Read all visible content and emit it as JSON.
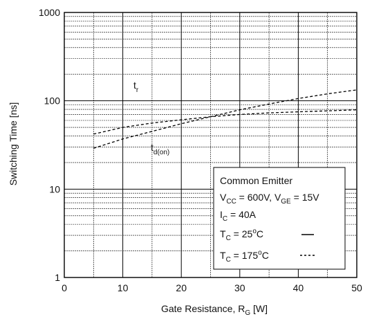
{
  "chart_data": {
    "type": "line",
    "xlabel": "Gate Resistance, R",
    "xlabel_sub": "G",
    "xlabel_unit": " [W]",
    "ylabel": "Switching Time [ns]",
    "xlim": [
      0,
      50
    ],
    "ylim": [
      1,
      1000
    ],
    "yscale": "log",
    "grid": true,
    "x_ticks": [
      0,
      10,
      20,
      30,
      40,
      50
    ],
    "x_tick_labels": [
      "0",
      "10",
      "20",
      "30",
      "40",
      "50"
    ],
    "y_ticks": [
      1,
      10,
      100,
      1000
    ],
    "y_tick_labels": [
      "1",
      "10",
      "100",
      "1000"
    ],
    "series": [
      {
        "name": "t_r",
        "label_main": "t",
        "label_sub": "r",
        "style": "dashed",
        "x": [
          5,
          10,
          15,
          20,
          25,
          30,
          35,
          40,
          45,
          50
        ],
        "y": [
          29,
          37,
          45,
          55,
          66,
          79,
          92,
          106,
          120,
          133
        ]
      },
      {
        "name": "t_d(on)",
        "label_main": "t",
        "label_sub": "d(on)",
        "style": "dashed",
        "x": [
          5,
          10,
          15,
          20,
          25,
          30,
          35,
          40,
          45,
          50
        ],
        "y": [
          42,
          50,
          56,
          61,
          66,
          70,
          73,
          75,
          77,
          79
        ]
      }
    ],
    "legend": {
      "placement": "bottom-right",
      "title": "Common Emitter",
      "line1": {
        "a": "V",
        "a_sub": "CC",
        "b": " = 600V, V",
        "b_sub": "GE",
        "c": " = 15V"
      },
      "line2": {
        "a": "I",
        "a_sub": "C",
        "b": " = 40A"
      },
      "line3": {
        "a": "T",
        "a_sub": "C",
        "b": " = 25",
        "sup": "o",
        "c": "C"
      },
      "line4": {
        "a": "T",
        "a_sub": "C",
        "b": " = 175",
        "sup": "o",
        "c": "C"
      }
    }
  }
}
